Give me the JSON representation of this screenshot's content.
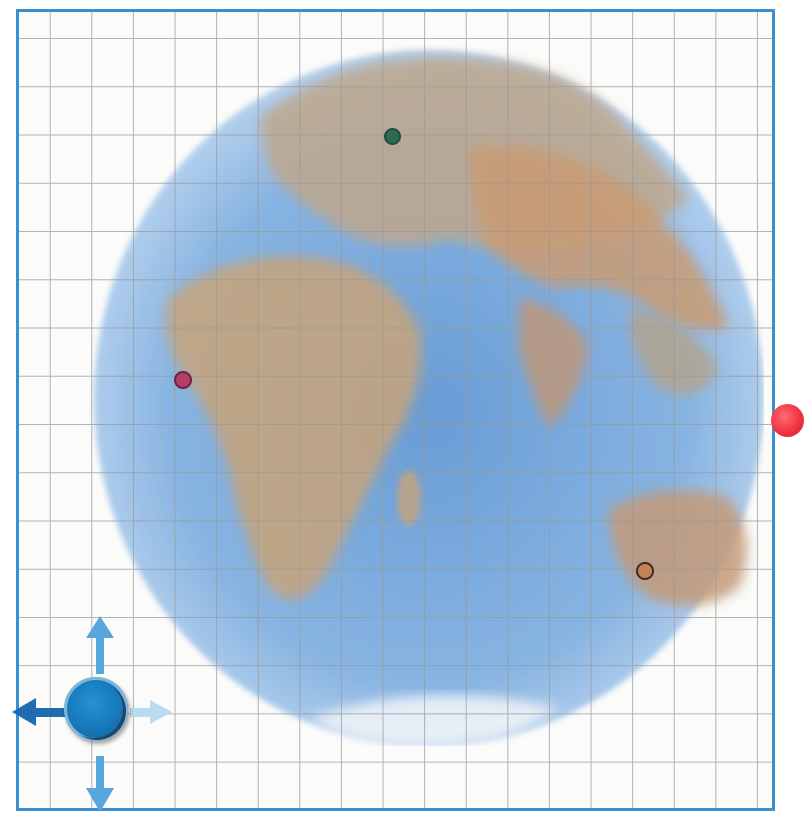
{
  "board": {
    "theme_colors": {
      "frame": "#3a8fd0",
      "grid_line": "#9a9a9a",
      "ocean": "#6fa3d8",
      "land": "#c9a27a"
    }
  },
  "markers": [
    {
      "id": "green",
      "color": "#2f6a55"
    },
    {
      "id": "magenta",
      "color": "#b0406a"
    },
    {
      "id": "orange",
      "color": "#c4815c"
    },
    {
      "id": "red",
      "color": "#ef2f3c"
    }
  ],
  "player": {
    "icon": "player-token-icon",
    "color": "#1676b8",
    "controls": [
      "arrow-up-icon",
      "arrow-down-icon",
      "arrow-left-icon",
      "arrow-right-icon"
    ]
  }
}
